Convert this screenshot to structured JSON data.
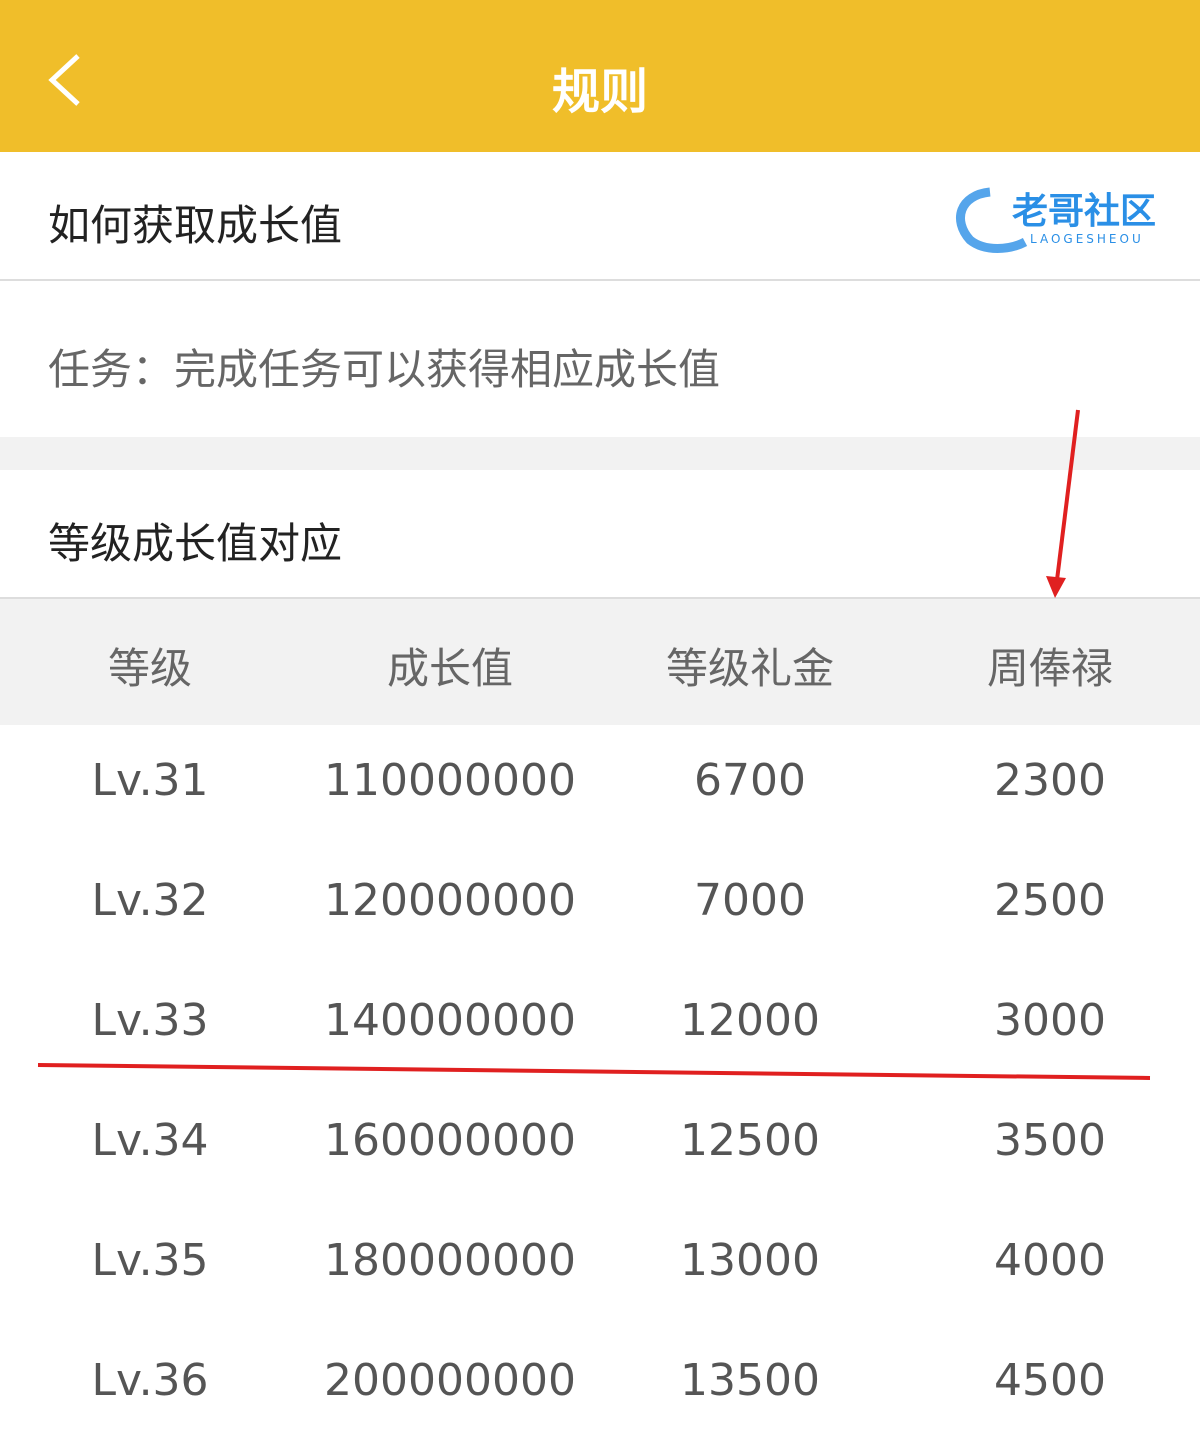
{
  "header": {
    "title": "规则",
    "back_icon": "chevron-left-icon",
    "color": "#F0BE2A"
  },
  "section1": {
    "title": "如何获取成长值",
    "task_text": "任务：完成任务可以获得相应成长值"
  },
  "section2": {
    "title": "等级成长值对应"
  },
  "table": {
    "columns": [
      "等级",
      "成长值",
      "等级礼金",
      "周俸禄"
    ],
    "rows": [
      [
        "Lv.31",
        "110000000",
        "6700",
        "2300"
      ],
      [
        "Lv.32",
        "120000000",
        "7000",
        "2500"
      ],
      [
        "Lv.33",
        "140000000",
        "12000",
        "3000"
      ],
      [
        "Lv.34",
        "160000000",
        "12500",
        "3500"
      ],
      [
        "Lv.35",
        "180000000",
        "13000",
        "4000"
      ],
      [
        "Lv.36",
        "200000000",
        "13500",
        "4500"
      ]
    ]
  },
  "annotations": {
    "color": "#E02020"
  },
  "watermark": {
    "text": "老哥社区",
    "subtext": "LAOGESHEOU"
  }
}
